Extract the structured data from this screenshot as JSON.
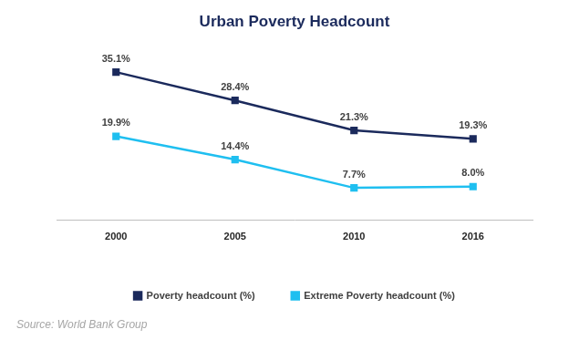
{
  "chart_data": {
    "type": "line",
    "title": "Urban Poverty Headcount",
    "categories": [
      "2000",
      "2005",
      "2010",
      "2016"
    ],
    "series": [
      {
        "name": "Poverty headcount (%)",
        "color": "#1b2a5c",
        "marker": "square",
        "line_style": "solid",
        "values": [
          35.1,
          28.4,
          21.3,
          19.3
        ],
        "value_labels": [
          "35.1%",
          "28.4%",
          "21.3%",
          "19.3%"
        ]
      },
      {
        "name": "Extreme Poverty headcount (%)",
        "color": "#1fbff0",
        "marker": "square",
        "line_style": "solid",
        "values": [
          19.9,
          14.4,
          7.7,
          8.0
        ],
        "value_labels": [
          "19.9%",
          "14.4%",
          "7.7%",
          "8.0%"
        ]
      }
    ],
    "ylim": [
      0,
      40
    ],
    "grid": false,
    "tick_labels": "x",
    "data_labels": true,
    "legend": "bottom",
    "source": "Source: World Bank Group"
  }
}
